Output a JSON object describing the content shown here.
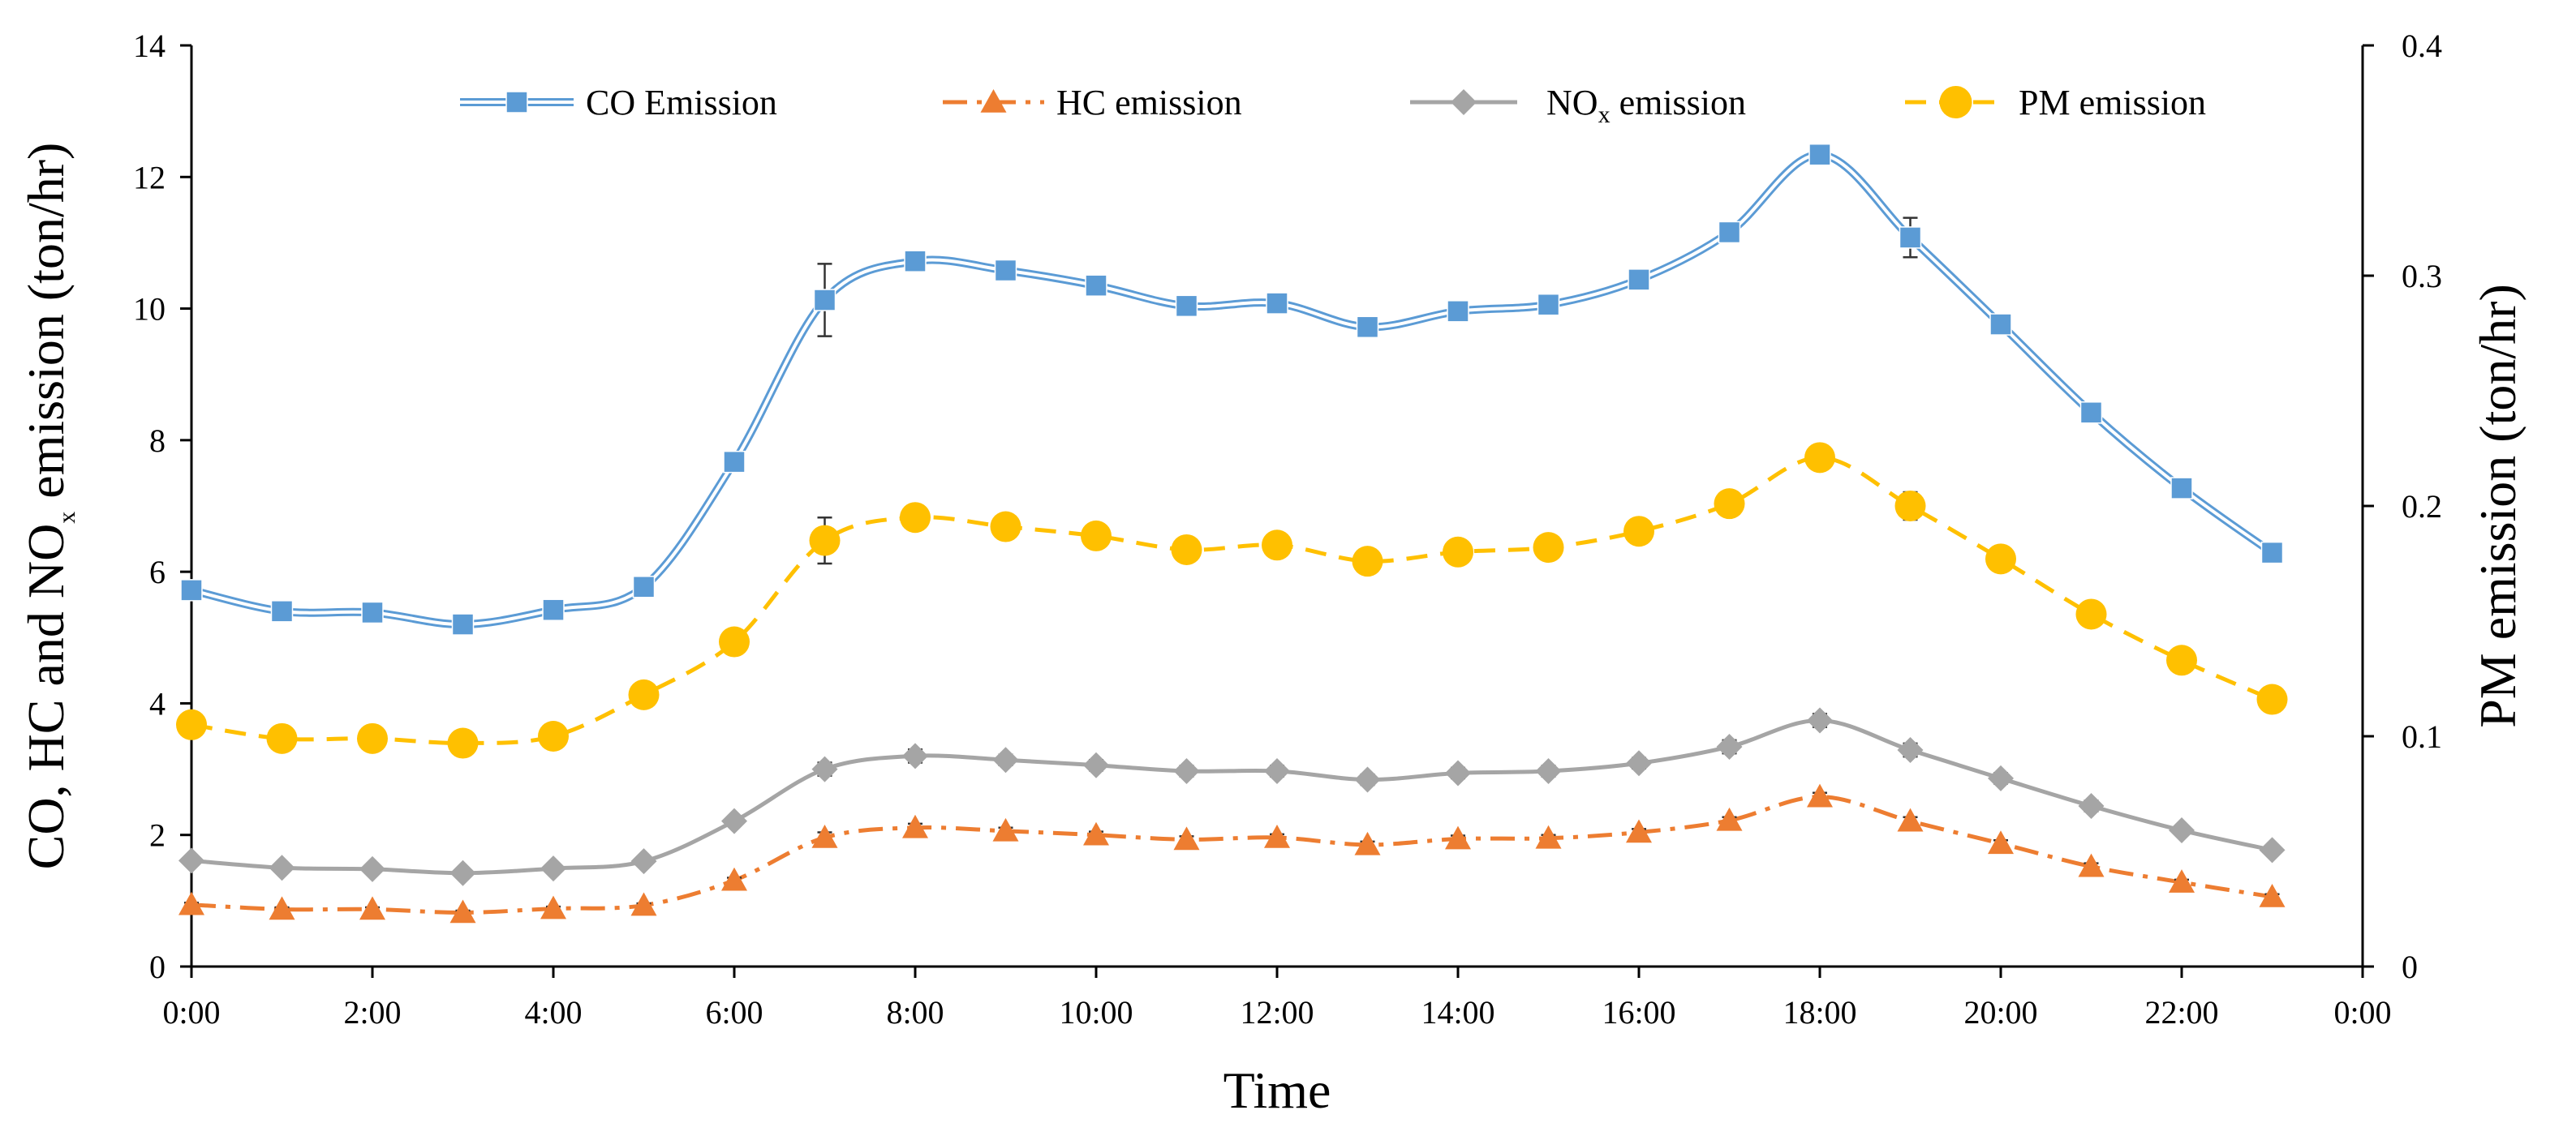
{
  "chart_data": {
    "type": "line",
    "xlabel": "Time",
    "ylabel": {
      "prefix": "CO, HC and NO",
      "sub": "x",
      "suffix": " emission (ton/hr)"
    },
    "y2label": "PM emission (ton/hr)",
    "x": [
      0,
      1,
      2,
      3,
      4,
      5,
      6,
      7,
      8,
      9,
      10,
      11,
      12,
      13,
      14,
      15,
      16,
      17,
      18,
      19,
      20,
      21,
      22,
      23
    ],
    "xlim": [
      0,
      24
    ],
    "xtick_values": [
      0,
      2,
      4,
      6,
      8,
      10,
      12,
      14,
      16,
      18,
      20,
      22,
      24
    ],
    "xtick_labels": [
      "0:00",
      "2:00",
      "4:00",
      "6:00",
      "8:00",
      "10:00",
      "12:00",
      "14:00",
      "16:00",
      "18:00",
      "20:00",
      "22:00",
      "0:00"
    ],
    "ylim": [
      0,
      14
    ],
    "ytick_values": [
      0,
      2,
      4,
      6,
      8,
      10,
      12,
      14
    ],
    "ytick_labels": [
      "0",
      "2",
      "4",
      "6",
      "8",
      "10",
      "12",
      "14"
    ],
    "y2lim": [
      0,
      0.4
    ],
    "y2tick_values": [
      0,
      0.1,
      0.2,
      0.3,
      0.4
    ],
    "y2tick_labels": [
      "0",
      "0.1",
      "0.2",
      "0.3",
      "0.4"
    ],
    "grid": false,
    "legend_position": "top",
    "series": [
      {
        "key": "co",
        "name": "CO Emission",
        "axis": "left",
        "color": "#5B9BD5",
        "marker": "square",
        "line_style": "double",
        "values": [
          5.72,
          5.4,
          5.38,
          5.2,
          5.42,
          5.77,
          7.67,
          10.13,
          10.72,
          10.58,
          10.35,
          10.04,
          10.08,
          9.72,
          9.96,
          10.06,
          10.44,
          11.16,
          12.34,
          11.08,
          9.76,
          8.42,
          7.27,
          6.29
        ],
        "errors": [
          0.08,
          0.05,
          0.05,
          0.05,
          0.05,
          0.08,
          0.12,
          0.55,
          0.15,
          0.08,
          0.08,
          0.08,
          0.08,
          0.08,
          0.08,
          0.08,
          0.08,
          0.1,
          0.1,
          0.3,
          0.1,
          0.1,
          0.08,
          0.08
        ]
      },
      {
        "key": "hc",
        "name": "HC emission",
        "axis": "left",
        "color": "#ED7D31",
        "marker": "triangle",
        "line_style": "dashdot",
        "values": [
          0.94,
          0.87,
          0.87,
          0.82,
          0.88,
          0.93,
          1.31,
          1.96,
          2.11,
          2.06,
          2.0,
          1.93,
          1.96,
          1.85,
          1.94,
          1.95,
          2.04,
          2.22,
          2.58,
          2.21,
          1.87,
          1.52,
          1.28,
          1.06
        ],
        "errors": [
          0.03,
          0.03,
          0.03,
          0.03,
          0.03,
          0.03,
          0.04,
          0.08,
          0.06,
          0.05,
          0.05,
          0.05,
          0.05,
          0.05,
          0.05,
          0.05,
          0.05,
          0.05,
          0.06,
          0.06,
          0.05,
          0.05,
          0.04,
          0.04
        ]
      },
      {
        "key": "nox",
        "name": {
          "prefix": "NO",
          "sub": "x",
          "suffix": " emission"
        },
        "axis": "left",
        "color": "#A5A5A5",
        "marker": "diamond",
        "line_style": "solid",
        "values": [
          1.61,
          1.5,
          1.48,
          1.42,
          1.49,
          1.6,
          2.21,
          3.0,
          3.2,
          3.14,
          3.06,
          2.97,
          2.97,
          2.84,
          2.94,
          2.97,
          3.09,
          3.34,
          3.74,
          3.29,
          2.86,
          2.44,
          2.07,
          1.77
        ],
        "errors": [
          0.04,
          0.04,
          0.04,
          0.04,
          0.04,
          0.04,
          0.05,
          0.1,
          0.1,
          0.08,
          0.08,
          0.08,
          0.08,
          0.08,
          0.08,
          0.08,
          0.08,
          0.1,
          0.1,
          0.1,
          0.08,
          0.08,
          0.06,
          0.06
        ]
      },
      {
        "key": "pm",
        "name": "PM emission",
        "axis": "right",
        "color": "#FFC000",
        "marker": "circle",
        "line_style": "dashed",
        "values": [
          0.105,
          0.099,
          0.099,
          0.097,
          0.1,
          0.118,
          0.141,
          0.185,
          0.195,
          0.191,
          0.187,
          0.181,
          0.183,
          0.176,
          0.18,
          0.182,
          0.189,
          0.201,
          0.221,
          0.2,
          0.177,
          0.153,
          0.133,
          0.116
        ],
        "errors": [
          0.002,
          0.002,
          0.002,
          0.002,
          0.002,
          0.002,
          0.003,
          0.01,
          0.004,
          0.003,
          0.003,
          0.003,
          0.003,
          0.003,
          0.003,
          0.003,
          0.003,
          0.003,
          0.004,
          0.006,
          0.003,
          0.003,
          0.003,
          0.003
        ]
      }
    ]
  }
}
